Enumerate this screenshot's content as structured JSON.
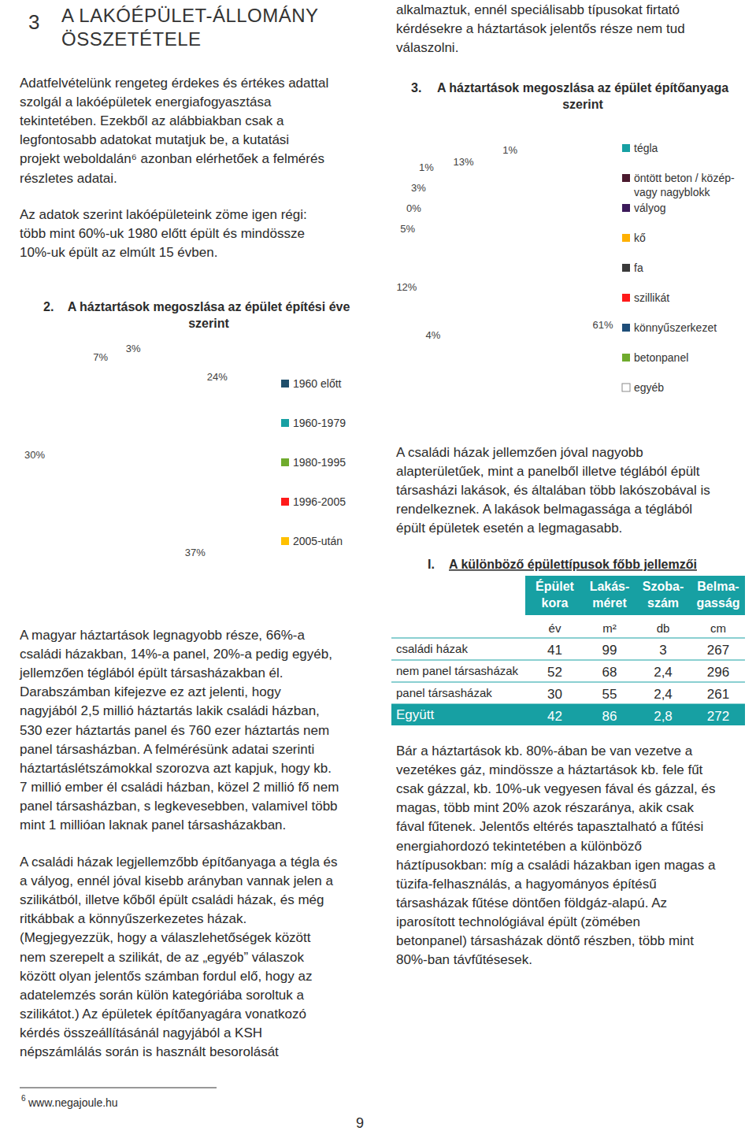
{
  "header": {
    "number": "3",
    "title": [
      "A LAKÓÉPÜLET-ÁLLOMÁNY",
      "ÖSSZETÉTELE"
    ]
  },
  "text_blocks": [
    {
      "lines": [
        "Adatfelvételünk rengeteg érdekes és értékes adattal",
        "szolgál a lakóépületek energiafogyasztása",
        "tekintetében. Ezekből az alábbiakban csak a",
        "legfontosabb adatokat mutatjuk be, a kutatási",
        "projekt weboldalán⁶ azonban elérhetőek a felmérés",
        "részletes adatai."
      ]
    },
    {
      "lines": [
        "Az adatok szerint lakóépületeink zöme igen régi:",
        "több mint 60%-uk 1980 előtt épült és mindössze",
        "10%-uk épült az elmúlt 15 évben."
      ]
    },
    {
      "lines": [
        "A magyar háztartások legnagyobb része, 66%-a",
        "családi házakban, 14%-a panel, 20%-a pedig egyéb,",
        "jellemzően téglából épült társasházakban él.",
        "Darabszámban kifejezve ez azt jelenti, hogy",
        "nagyjából 2,5 millió háztartás lakik családi házban,",
        "530 ezer háztartás panel és 760 ezer háztartás nem",
        "panel társasházban. A felmérésünk adatai szerinti",
        "háztartáslétszámokkal szorozva azt kapjuk, hogy kb.",
        "7 millió ember él családi házban, közel 2 millió fő nem",
        "panel társasházban, s legkevesebben, valamivel több",
        "mint 1 millióan laknak panel társasházakban."
      ]
    },
    {
      "lines": [
        "A családi házak legjellemzőbb építőanyaga a tégla és",
        "a vályog, ennél jóval kisebb arányban vannak jelen a",
        "szilikátból, illetve kőből épült családi házak, és még",
        "ritkábbak a könnyűszerkezetes házak.",
        "(Megjegyezzük, hogy a válaszlehetőségek között",
        "nem szerepelt a szilikát, de az „egyéb” válaszok",
        "között olyan jelentős számban fordul elő, hogy az",
        "adatelemzés során külön kategóriába soroltuk a",
        "szilikátot.) Az épületek építőanyagára vonatkozó",
        "kérdés összeállításánál nagyjából a KSH",
        "népszámlálás során is használt besorolását"
      ]
    },
    {
      "lines": [
        "alkalmaztuk, ennél speciálisabb típusokat firtató",
        "kérdésekre a háztartások jelentős része nem tud",
        "válaszolni."
      ]
    },
    {
      "lines": [
        "A családi házak jellemzően jóval nagyobb",
        "alapterületűek, mint a panelből illetve téglából épült",
        "társasházi lakások, és általában több lakószobával is",
        "rendelkeznek. A lakások belmagassága a téglából",
        "épült épületek esetén a legmagasabb."
      ]
    },
    {
      "lines": [
        "Bár a háztartások kb. 80%-ában be van vezetve a",
        "vezetékes gáz, mindössze a háztartások kb. fele fűt",
        "csak gázzal, kb. 10%-uk vegyesen fával és gázzal, és",
        "magas, több mint 20% azok részaránya, akik csak",
        "fával fűtenek. Jelentős eltérés tapasztalható a fűtési",
        "energiahordozó tekintetében a különböző",
        "háztípusokban: míg a családi házakban igen magas a",
        "tüzifa-felhasználás, a hagyományos építésű",
        "társasházak fűtése döntően földgáz-alapú. Az",
        "iparosított technológiával épült (zömében",
        "betonpanel) társasházak döntő részben, több mint",
        "80%-ban távfűtésesek."
      ]
    }
  ],
  "chart_data": [
    {
      "type": "pie",
      "number": "2.",
      "title": [
        "A háztartások megoszlása az épület építési éve",
        "szerint"
      ],
      "categories": [
        "1960 előtt",
        "1960-1979",
        "1980-1995",
        "1996-2005",
        "2005-után"
      ],
      "values": [
        24,
        37,
        30,
        7,
        3
      ],
      "value_labels": [
        "24%",
        "37%",
        "30%",
        "7%",
        "3%"
      ],
      "colors": [
        "#1f4e6b",
        "#17a0a3",
        "#6fab2d",
        "#ff1a1a",
        "#ffc000"
      ],
      "data_labels": true,
      "legend": "right"
    },
    {
      "type": "pie",
      "number": "3.",
      "title": [
        "A háztartások megoszlása az épület építőanyaga",
        "szerint"
      ],
      "categories": [
        "tégla",
        "öntött beton / közép-vagy nagyblokk",
        "vályog",
        "kő",
        "fa",
        "szillikát",
        "könnyűszerkezet",
        "betonpanel",
        "egyéb"
      ],
      "values": [
        61,
        4,
        12,
        5,
        0,
        3,
        1,
        13,
        1
      ],
      "value_labels": [
        "61%",
        "4%",
        "12%",
        "5%",
        "0%",
        "3%",
        "1%",
        "13%",
        "1%"
      ],
      "colors": [
        "#17a0a3",
        "#4b1a2e",
        "#3b1a5a",
        "#ffb000",
        "#3a3a3a",
        "#ff1a1a",
        "#1f4e79",
        "#6fab2d",
        "#ffffff"
      ],
      "data_labels": true,
      "legend": "right"
    }
  ],
  "table": {
    "number": "I.",
    "title": "A különböző épülettípusok főbb jellemzői",
    "columns": [
      [
        "Épület",
        "kora"
      ],
      [
        "Lakás-",
        "méret"
      ],
      [
        "Szoba-",
        "szám"
      ],
      [
        "Belma-",
        "gasság"
      ]
    ],
    "units": [
      "év",
      "m²",
      "db",
      "cm"
    ],
    "rows": [
      [
        "családi házak",
        "41",
        "99",
        "3",
        "267"
      ],
      [
        "nem panel társasházak",
        "52",
        "68",
        "2,4",
        "296"
      ],
      [
        "panel társasházak",
        "30",
        "55",
        "2,4",
        "261"
      ],
      [
        "Együtt",
        "42",
        "86",
        "2,8",
        "272"
      ]
    ]
  },
  "footnote": {
    "marker": "6",
    "text": "www.negajoule.hu"
  },
  "page_number": "9"
}
